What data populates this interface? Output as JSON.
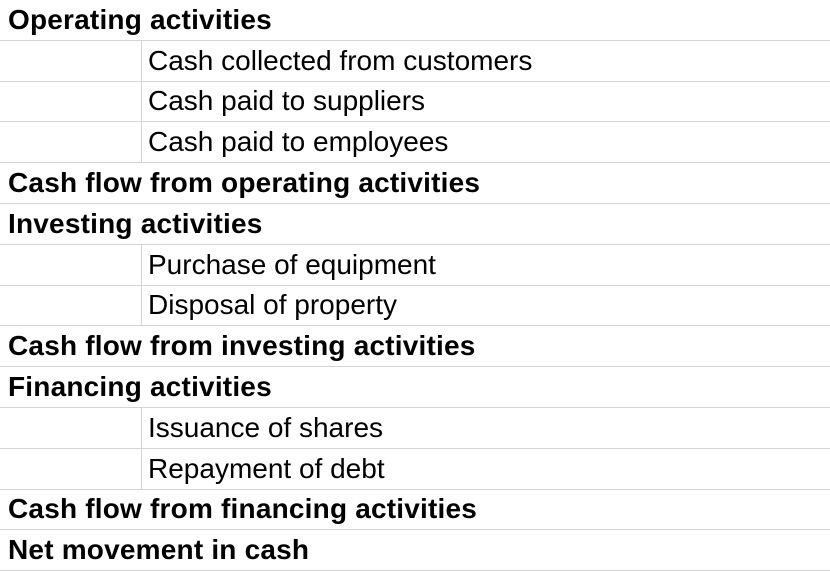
{
  "statement": {
    "rows": [
      {
        "type": "heading",
        "label": "Operating activities"
      },
      {
        "type": "detail",
        "label": "Cash collected from customers"
      },
      {
        "type": "detail",
        "label": "Cash paid to suppliers"
      },
      {
        "type": "detail",
        "label": "Cash paid to employees"
      },
      {
        "type": "heading",
        "label": "Cash flow from operating activities"
      },
      {
        "type": "heading",
        "label": "Investing activities"
      },
      {
        "type": "detail",
        "label": "Purchase of equipment"
      },
      {
        "type": "detail",
        "label": "Disposal of property"
      },
      {
        "type": "heading",
        "label": "Cash flow from investing activities"
      },
      {
        "type": "heading",
        "label": "Financing activities"
      },
      {
        "type": "detail",
        "label": "Issuance of shares"
      },
      {
        "type": "detail",
        "label": "Repayment of debt"
      },
      {
        "type": "heading",
        "label": "Cash flow from financing activities"
      },
      {
        "type": "heading",
        "label": "Net movement in cash"
      }
    ]
  },
  "colors": {
    "gridline": "#d4d4d4",
    "text": "#000000",
    "background": "#ffffff"
  }
}
